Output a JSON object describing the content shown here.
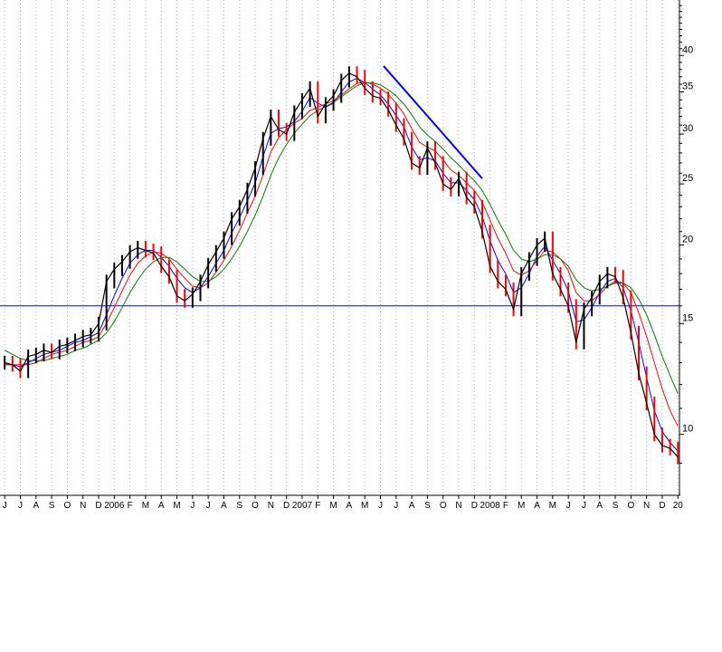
{
  "chart_data": {
    "type": "line",
    "title": "",
    "xlabel": "",
    "ylabel": "",
    "y_scale": "log",
    "ylim": [
      8,
      49
    ],
    "grid": {
      "vertical": "dotted",
      "horizontal": false
    },
    "y_ticks": [
      10,
      15,
      20,
      25,
      30,
      35,
      40
    ],
    "x_ticks": [
      "J",
      "J",
      "A",
      "S",
      "O",
      "N",
      "D",
      "2006",
      "F",
      "M",
      "A",
      "M",
      "J",
      "J",
      "A",
      "S",
      "O",
      "N",
      "D",
      "2007",
      "F",
      "M",
      "A",
      "M",
      "J",
      "J",
      "A",
      "S",
      "O",
      "N",
      "D",
      "2008",
      "F",
      "M",
      "A",
      "M",
      "J",
      "J",
      "A",
      "S",
      "O",
      "N",
      "D",
      "20"
    ],
    "x_tick_positions": [
      0,
      1,
      2,
      3,
      4,
      5,
      6,
      7,
      8,
      9,
      10,
      11,
      12,
      13,
      14,
      15,
      16,
      17,
      18,
      19,
      20,
      21,
      22,
      23,
      24,
      25,
      26,
      27,
      28,
      29,
      30,
      31,
      32,
      33,
      34,
      35,
      36,
      37,
      38,
      39,
      40,
      41,
      42,
      43
    ],
    "x_range": [
      -0.3,
      43.1
    ],
    "support_line": {
      "value": 16,
      "color": "#0000ff"
    },
    "trend_line": {
      "points": [
        [
          24.2,
          38.5
        ],
        [
          30.5,
          25.5
        ]
      ],
      "color": "#0000ff"
    },
    "price": {
      "name": "",
      "up_color": "#000000",
      "down_color": "#ff0000",
      "x": [
        0,
        0.5,
        1,
        1.5,
        2,
        2.5,
        3,
        3.5,
        4,
        4.5,
        5,
        5.5,
        6,
        6.5,
        7,
        7.5,
        8,
        8.5,
        9,
        9.5,
        10,
        10.5,
        11,
        11.5,
        12,
        12.5,
        13,
        13.5,
        14,
        14.5,
        15,
        15.5,
        16,
        16.5,
        17,
        17.5,
        18,
        18.5,
        19,
        19.5,
        20,
        20.5,
        21,
        21.5,
        22,
        22.5,
        23,
        23.5,
        24,
        24.5,
        25,
        25.5,
        26,
        26.5,
        27,
        27.5,
        28,
        28.5,
        29,
        29.5,
        30,
        30.5,
        31,
        31.5,
        32,
        32.5,
        33,
        33.5,
        34,
        34.5,
        35,
        35.5,
        36,
        36.5,
        37,
        37.5,
        38,
        38.5,
        39,
        39.5,
        40,
        40.5,
        41,
        41.5,
        42,
        42.5,
        43
      ],
      "y": [
        13.0,
        12.9,
        12.6,
        13.3,
        13.4,
        13.6,
        13.5,
        13.8,
        13.9,
        14.1,
        14.3,
        14.4,
        15.0,
        17.5,
        18.3,
        18.8,
        19.5,
        19.8,
        19.6,
        19.4,
        18.5,
        17.8,
        16.6,
        16.3,
        16.7,
        17.5,
        18.6,
        19.5,
        20.5,
        22.0,
        23.0,
        24.5,
        26.5,
        29.5,
        32.0,
        30.5,
        30.0,
        32.5,
        34.0,
        35.5,
        32.0,
        33.5,
        34.5,
        36.5,
        37.5,
        37.0,
        35.5,
        34.5,
        34.2,
        32.8,
        31.0,
        29.5,
        27.0,
        26.5,
        28.5,
        27.0,
        25.0,
        24.5,
        25.5,
        23.8,
        23.0,
        21.0,
        18.5,
        17.5,
        17.0,
        15.8,
        18.0,
        19.0,
        20.0,
        20.5,
        18.0,
        17.0,
        16.0,
        14.0,
        15.8,
        16.5,
        17.5,
        18.0,
        17.8,
        16.5,
        14.5,
        12.5,
        11.2,
        10.0,
        9.6,
        9.5,
        9.2
      ]
    },
    "moving_averages": [
      {
        "name": "",
        "color": "#0000ff",
        "y": [
          12.9,
          12.9,
          12.8,
          13.0,
          13.2,
          13.4,
          13.5,
          13.6,
          13.8,
          14.0,
          14.1,
          14.3,
          14.5,
          15.5,
          16.6,
          17.7,
          18.7,
          19.3,
          19.6,
          19.6,
          19.1,
          18.5,
          17.7,
          17.1,
          16.8,
          17.1,
          17.8,
          18.7,
          19.6,
          20.9,
          22.1,
          23.5,
          25.1,
          27.6,
          30.1,
          30.6,
          30.8,
          31.4,
          32.6,
          34.3,
          33.6,
          33.1,
          33.6,
          35.0,
          36.3,
          36.8,
          36.2,
          35.4,
          34.6,
          33.5,
          32.1,
          30.8,
          28.6,
          27.3,
          27.5,
          27.2,
          26.0,
          25.1,
          25.1,
          24.4,
          23.6,
          22.2,
          20.3,
          18.9,
          18.0,
          16.8,
          17.1,
          18.0,
          19.2,
          19.9,
          18.9,
          18.0,
          16.9,
          15.1,
          15.2,
          15.9,
          16.8,
          17.5,
          17.7,
          17.1,
          15.7,
          14.0,
          12.3,
          10.9,
          10.1,
          9.7,
          9.4
        ]
      },
      {
        "name": "",
        "color": "#ff0000",
        "y": [
          12.9,
          12.9,
          12.9,
          12.9,
          13.0,
          13.2,
          13.4,
          13.5,
          13.6,
          13.8,
          14.0,
          14.1,
          14.3,
          15.0,
          15.9,
          16.9,
          17.9,
          18.7,
          19.2,
          19.5,
          19.4,
          19.0,
          18.3,
          17.7,
          17.2,
          17.1,
          17.4,
          18.1,
          18.9,
          19.9,
          21.1,
          22.5,
          23.9,
          25.8,
          28.1,
          29.6,
          30.5,
          31.2,
          31.8,
          32.7,
          33.1,
          33.5,
          33.9,
          34.6,
          35.4,
          36.1,
          36.3,
          36.0,
          35.5,
          34.7,
          33.6,
          32.3,
          30.6,
          29.1,
          28.6,
          28.2,
          27.3,
          26.3,
          25.8,
          25.1,
          24.4,
          23.4,
          21.9,
          20.5,
          19.4,
          18.2,
          17.9,
          18.2,
          18.9,
          19.6,
          19.5,
          19.0,
          18.2,
          16.8,
          16.3,
          16.3,
          16.7,
          17.2,
          17.5,
          17.4,
          16.8,
          15.6,
          14.3,
          13.0,
          11.8,
          10.9,
          10.3
        ]
      },
      {
        "name": "",
        "color": "#008000",
        "y": [
          13.6,
          13.4,
          13.2,
          13.1,
          13.1,
          13.1,
          13.2,
          13.3,
          13.4,
          13.6,
          13.7,
          13.9,
          14.1,
          14.5,
          15.1,
          15.9,
          16.8,
          17.6,
          18.3,
          18.8,
          19.1,
          19.1,
          18.8,
          18.3,
          17.8,
          17.5,
          17.5,
          17.8,
          18.3,
          19.0,
          19.9,
          21.0,
          22.3,
          23.9,
          25.8,
          27.5,
          28.9,
          30.1,
          31.1,
          32.1,
          32.7,
          33.2,
          33.7,
          34.4,
          35.1,
          35.8,
          36.2,
          36.2,
          35.9,
          35.3,
          34.5,
          33.5,
          32.2,
          30.8,
          29.9,
          29.2,
          28.4,
          27.5,
          26.8,
          26.0,
          25.3,
          24.4,
          23.2,
          21.9,
          20.8,
          19.6,
          19.0,
          18.8,
          19.0,
          19.3,
          19.3,
          19.0,
          18.5,
          17.6,
          17.1,
          16.9,
          17.0,
          17.2,
          17.4,
          17.4,
          17.1,
          16.4,
          15.5,
          14.4,
          13.3,
          12.4,
          11.6
        ]
      }
    ]
  }
}
